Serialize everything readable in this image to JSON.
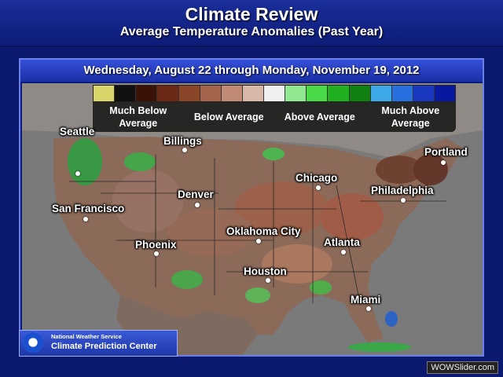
{
  "header": {
    "title": "Climate Review",
    "subtitle": "Average Temperature Anomalies (Past Year)"
  },
  "date_range": "Wednesday, August 22 through Monday, November 19, 2012",
  "legend": {
    "colors": [
      "#d8d66a",
      "#111111",
      "#3a1208",
      "#6b2814",
      "#8a4428",
      "#a4644c",
      "#c08a76",
      "#d8b8a8",
      "#f0f0f0",
      "#90e890",
      "#48d848",
      "#20b020",
      "#108010",
      "#3ca8e8",
      "#2870e0",
      "#1838c0",
      "#0818a0"
    ],
    "labels": [
      "Much Below Average",
      "Below Average",
      "Above Average",
      "Much Above Average"
    ]
  },
  "cities": [
    {
      "name": "Seattle"
    },
    {
      "name": "Billings"
    },
    {
      "name": "Portland"
    },
    {
      "name": "Chicago"
    },
    {
      "name": "Philadelphia"
    },
    {
      "name": "Denver"
    },
    {
      "name": "San Francisco"
    },
    {
      "name": "Oklahoma City"
    },
    {
      "name": "Atlanta"
    },
    {
      "name": "Phoenix"
    },
    {
      "name": "Houston"
    },
    {
      "name": "Miami"
    }
  ],
  "logo": {
    "line1": "National Weather Service",
    "line2": "Climate Prediction Center"
  },
  "watermark": "WOWSlider.com"
}
